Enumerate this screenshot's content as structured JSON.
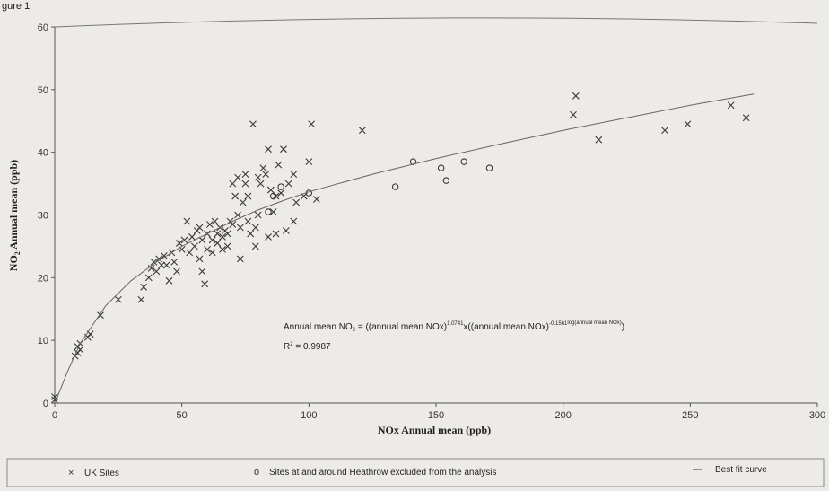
{
  "figure_caption": "gure 1",
  "chart_data": {
    "type": "scatter",
    "xlabel": "NOx Annual mean (ppb)",
    "ylabel_main": "NO",
    "ylabel_sub": "2",
    "ylabel_rest": " Annual mean (ppb)",
    "xlim": [
      0,
      300
    ],
    "ylim": [
      0,
      60
    ],
    "x_ticks": [
      0,
      50,
      100,
      150,
      200,
      250,
      300
    ],
    "y_ticks": [
      0,
      10,
      20,
      30,
      40,
      50,
      60
    ],
    "grid": false,
    "equation": {
      "prefix": "Annual mean NO",
      "prefix_sub": "2",
      "mid": " = ((annual mean NOx)",
      "exp1": "1.0741",
      "mid2": "x((annual mean NOx)",
      "exp2": "-0.1561",
      "exp2b": "log(annual mean NOx)",
      "suffix": ")",
      "r2_label": "R",
      "r2_sup": "2",
      "r2_value": " = 0.9987"
    },
    "legend": {
      "position": "bottom",
      "items": [
        {
          "symbol": "×",
          "label": "UK Sites"
        },
        {
          "symbol": "o",
          "label": "Sites at and around Heathrow excluded from the analysis"
        },
        {
          "symbol": "—",
          "label": "Best fit curve"
        }
      ]
    },
    "series": [
      {
        "name": "UK Sites",
        "marker": "x",
        "points": [
          [
            0,
            0.5
          ],
          [
            0,
            1
          ],
          [
            8,
            7.5
          ],
          [
            9,
            8
          ],
          [
            9,
            9
          ],
          [
            10,
            8.5
          ],
          [
            10,
            9.5
          ],
          [
            13,
            10.5
          ],
          [
            14,
            11
          ],
          [
            18,
            14
          ],
          [
            25,
            16.5
          ],
          [
            34,
            16.5
          ],
          [
            35,
            18.5
          ],
          [
            37,
            20
          ],
          [
            38,
            21.5
          ],
          [
            39,
            22.5
          ],
          [
            40,
            21
          ],
          [
            41,
            23
          ],
          [
            42,
            22
          ],
          [
            43,
            23.5
          ],
          [
            44,
            22
          ],
          [
            45,
            19.5
          ],
          [
            46,
            24
          ],
          [
            47,
            22.5
          ],
          [
            48,
            21
          ],
          [
            49,
            25.5
          ],
          [
            50,
            24.5
          ],
          [
            51,
            26
          ],
          [
            52,
            29
          ],
          [
            53,
            24
          ],
          [
            54,
            26.5
          ],
          [
            55,
            25
          ],
          [
            56,
            27.5
          ],
          [
            57,
            28
          ],
          [
            57,
            23
          ],
          [
            58,
            26
          ],
          [
            58,
            21
          ],
          [
            59,
            19
          ],
          [
            60,
            27
          ],
          [
            60,
            24.5
          ],
          [
            61,
            28.5
          ],
          [
            62,
            26
          ],
          [
            62,
            24
          ],
          [
            63,
            29
          ],
          [
            64,
            27
          ],
          [
            64,
            25.5
          ],
          [
            65,
            28
          ],
          [
            66,
            26.5
          ],
          [
            66,
            24.5
          ],
          [
            67,
            27.5
          ],
          [
            68,
            25
          ],
          [
            68,
            27
          ],
          [
            69,
            29
          ],
          [
            70,
            28.5
          ],
          [
            70,
            35
          ],
          [
            71,
            33
          ],
          [
            72,
            36
          ],
          [
            72,
            30
          ],
          [
            73,
            28
          ],
          [
            73,
            23
          ],
          [
            74,
            32
          ],
          [
            75,
            35
          ],
          [
            75,
            36.5
          ],
          [
            76,
            33
          ],
          [
            76,
            29
          ],
          [
            77,
            27
          ],
          [
            78,
            44.5
          ],
          [
            79,
            25
          ],
          [
            79,
            28
          ],
          [
            80,
            30
          ],
          [
            80,
            36
          ],
          [
            81,
            35
          ],
          [
            82,
            37.5
          ],
          [
            83,
            36.5
          ],
          [
            84,
            26.5
          ],
          [
            84,
            40.5
          ],
          [
            85,
            34
          ],
          [
            86,
            30.5
          ],
          [
            87,
            27
          ],
          [
            87,
            33
          ],
          [
            88,
            38
          ],
          [
            89,
            33.5
          ],
          [
            90,
            40.5
          ],
          [
            91,
            27.5
          ],
          [
            92,
            35
          ],
          [
            94,
            36.5
          ],
          [
            94,
            29
          ],
          [
            95,
            32
          ],
          [
            98,
            33
          ],
          [
            100,
            38.5
          ],
          [
            101,
            44.5
          ],
          [
            103,
            32.5
          ],
          [
            121,
            43.5
          ],
          [
            204,
            46
          ],
          [
            205,
            49
          ],
          [
            214,
            42
          ],
          [
            240,
            43.5
          ],
          [
            249,
            44.5
          ],
          [
            266,
            47.5
          ],
          [
            272,
            45.5
          ]
        ]
      },
      {
        "name": "Sites at and around Heathrow excluded from the analysis",
        "marker": "o",
        "points": [
          [
            84,
            30.5
          ],
          [
            86,
            33
          ],
          [
            89,
            34.5
          ],
          [
            100,
            33.5
          ],
          [
            134,
            34.5
          ],
          [
            141,
            38.5
          ],
          [
            152,
            37.5
          ],
          [
            154,
            35.5
          ],
          [
            161,
            38.5
          ],
          [
            171,
            37.5
          ]
        ]
      },
      {
        "name": "Best fit curve",
        "marker": "line",
        "points": [
          [
            0.5,
            0.4
          ],
          [
            5,
            5
          ],
          [
            10,
            9.5
          ],
          [
            20,
            15.5
          ],
          [
            30,
            19.5
          ],
          [
            40,
            22.5
          ],
          [
            50,
            25
          ],
          [
            60,
            27
          ],
          [
            70,
            29
          ],
          [
            80,
            30.8
          ],
          [
            90,
            32.3
          ],
          [
            100,
            33.7
          ],
          [
            125,
            36.5
          ],
          [
            150,
            39
          ],
          [
            175,
            41.3
          ],
          [
            200,
            43.5
          ],
          [
            225,
            45.5
          ],
          [
            250,
            47.5
          ],
          [
            275,
            49.3
          ]
        ]
      }
    ]
  }
}
